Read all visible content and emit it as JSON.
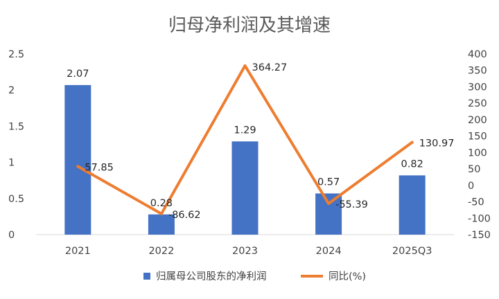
{
  "chart_data": {
    "type": "bar",
    "title": "归母净利润及其增速",
    "categories": [
      "2021",
      "2022",
      "2023",
      "2024",
      "2025Q3"
    ],
    "series": [
      {
        "name": "归属母公司股东的净利润",
        "type": "bar",
        "axis": "left",
        "values": [
          2.07,
          0.28,
          1.29,
          0.57,
          0.82
        ],
        "labels": [
          "2.07",
          "0.28",
          "1.29",
          "0.57",
          "0.82"
        ]
      },
      {
        "name": "同比(%)",
        "type": "line",
        "axis": "right",
        "values": [
          57.85,
          -86.62,
          364.27,
          -55.39,
          130.97
        ],
        "labels": [
          "57.85",
          "-86.62",
          "364.27",
          "-55.39",
          "130.97"
        ]
      }
    ],
    "y_left": {
      "min": 0,
      "max": 2.5,
      "ticks": [
        "0",
        "0.5",
        "1",
        "1.5",
        "2",
        "2.5"
      ]
    },
    "y_right": {
      "min": -150,
      "max": 400,
      "ticks": [
        "-150",
        "-100",
        "-50",
        "0",
        "50",
        "100",
        "150",
        "200",
        "250",
        "300",
        "350",
        "400"
      ]
    },
    "grid": false,
    "legend_position": "bottom",
    "colors": {
      "bar": "#4472c4",
      "line": "#ed7d31"
    }
  }
}
